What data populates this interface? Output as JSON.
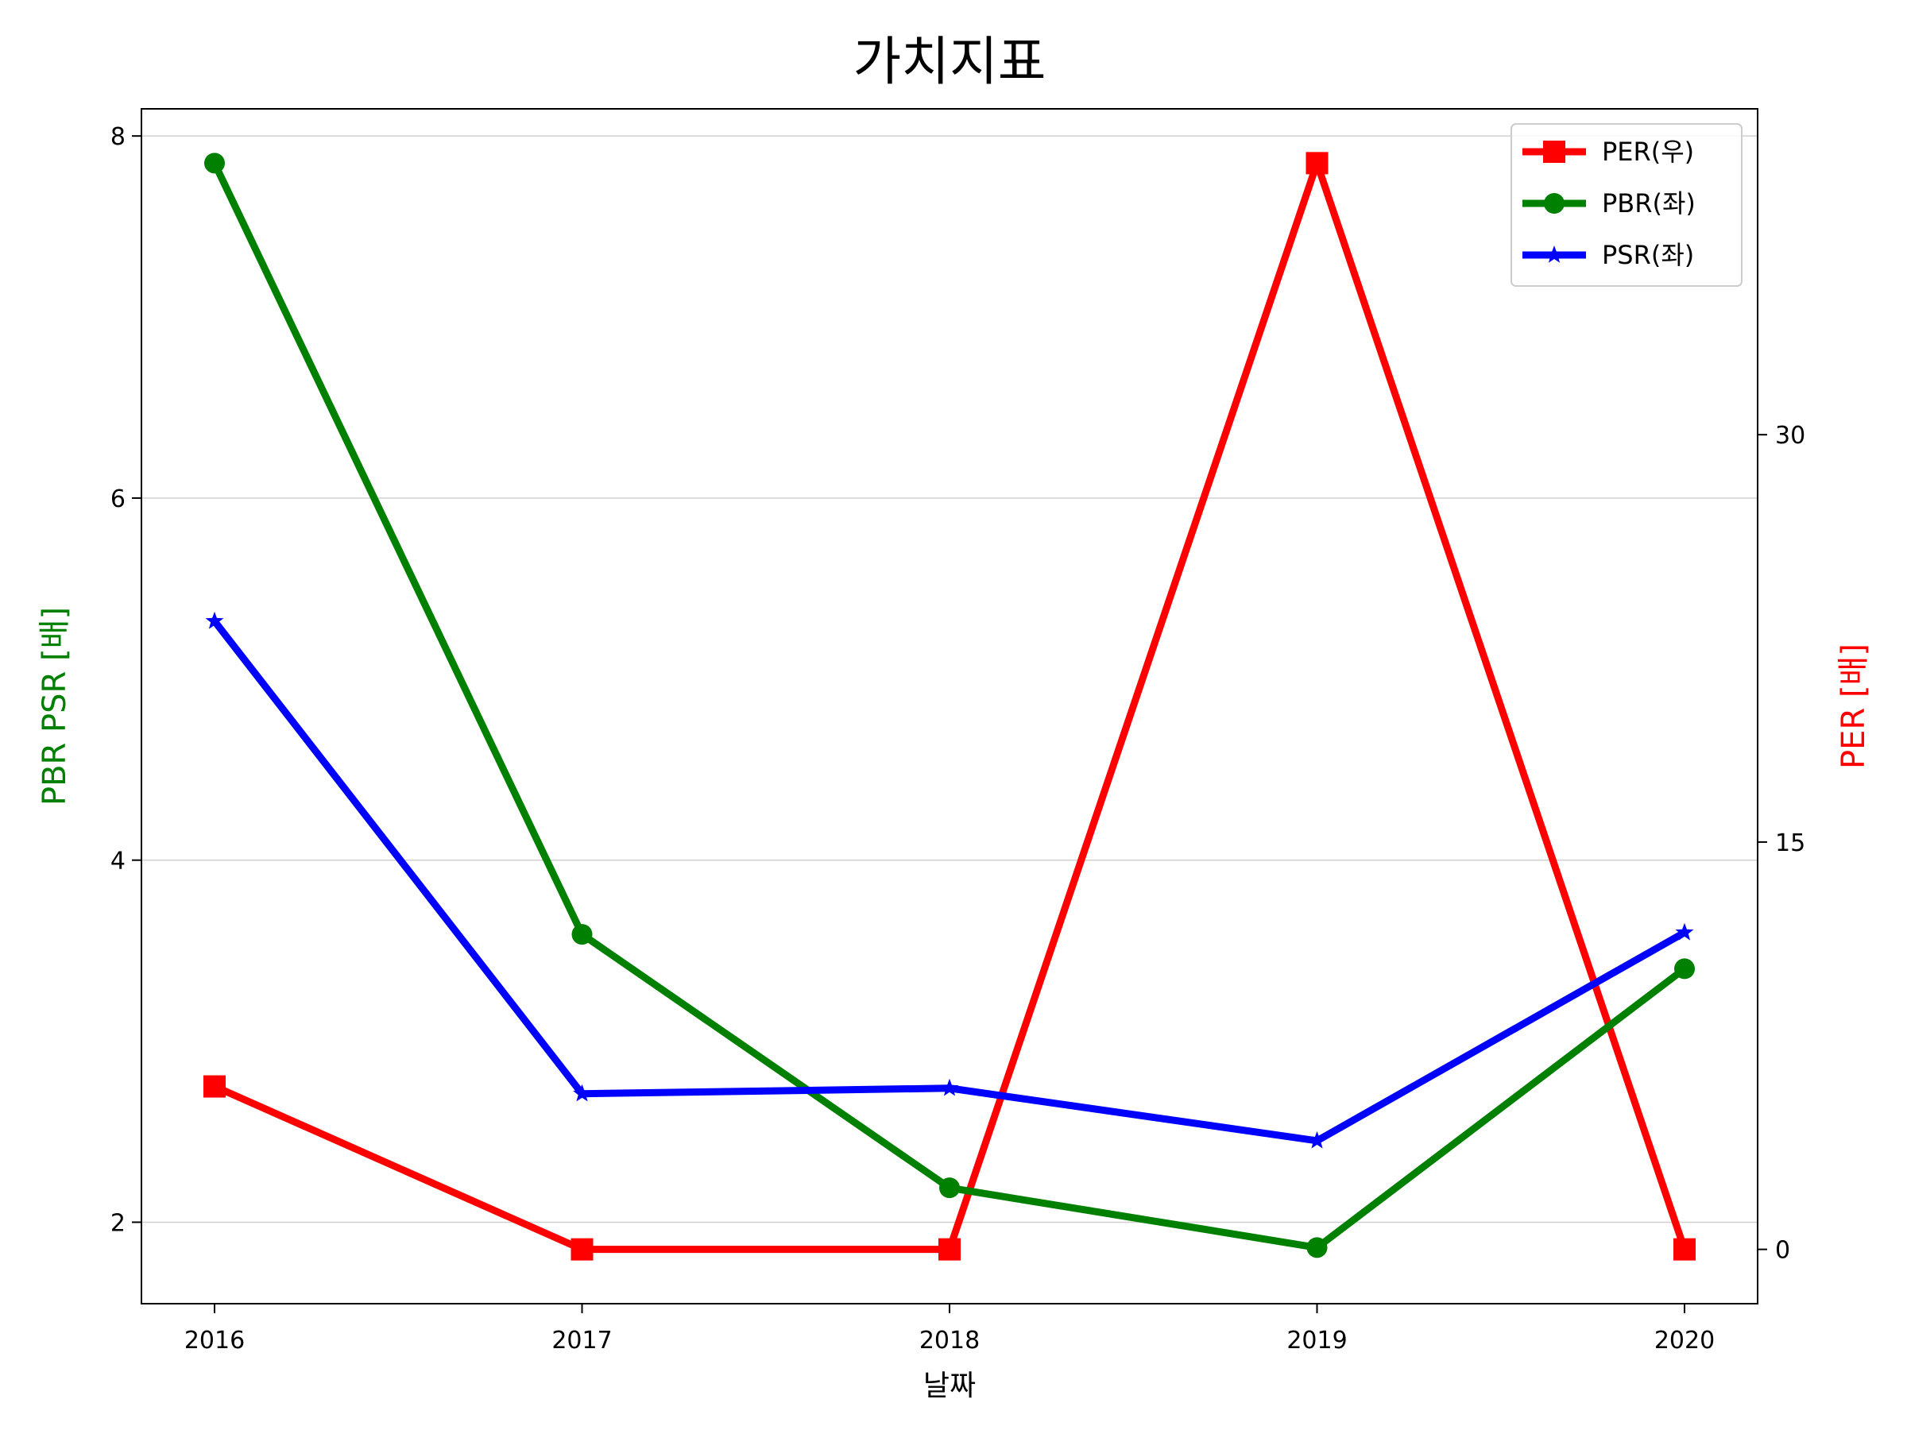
{
  "chart_data": {
    "type": "line",
    "title": "가치지표",
    "xlabel": "날짜",
    "ylabel_left": "PBR PSR [배]",
    "ylabel_right": "PER [배]",
    "categories": [
      "2016",
      "2017",
      "2018",
      "2019",
      "2020"
    ],
    "ylim_left": [
      1.55,
      8.15
    ],
    "yticks_left": [
      2,
      4,
      6,
      8
    ],
    "ylim_right": [
      -2.0,
      42.0
    ],
    "yticks_right": [
      0,
      15,
      30
    ],
    "grid": "horizontal (left axis)",
    "legend_position": "top-right",
    "series": [
      {
        "name": "PER(우)",
        "axis": "right",
        "color": "#ff0000",
        "marker": "square",
        "values": [
          6.0,
          0.0,
          0.0,
          40.0,
          0.0
        ]
      },
      {
        "name": "PBR(좌)",
        "axis": "left",
        "color": "#008000",
        "marker": "circle",
        "values": [
          7.85,
          3.59,
          2.19,
          1.86,
          3.4
        ]
      },
      {
        "name": "PSR(좌)",
        "axis": "left",
        "color": "#0000ff",
        "marker": "star",
        "values": [
          5.32,
          2.71,
          2.74,
          2.45,
          3.6
        ]
      }
    ]
  }
}
